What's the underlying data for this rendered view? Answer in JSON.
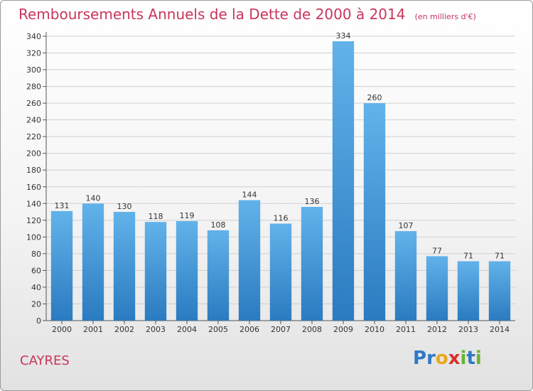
{
  "title": "Remboursements Annuels de la Dette de 2000 à 2014",
  "unit": "(en milliers d'€)",
  "commune": "CAYRES",
  "logo": {
    "parts": [
      "P",
      "r",
      "o",
      "x",
      "i",
      "t",
      "i"
    ],
    "colors": [
      "#2f78c4",
      "#2f78c4",
      "#e8a81b",
      "#d9302c",
      "#68b42f",
      "#2f78c4",
      "#68b42f"
    ]
  },
  "colors": {
    "title": "#c8365c",
    "bar_top": "#62b2ea",
    "bar_bottom": "#2a7bc0",
    "grid": "#cfcfcf"
  },
  "chart_data": {
    "type": "bar",
    "categories": [
      "2000",
      "2001",
      "2002",
      "2003",
      "2004",
      "2005",
      "2006",
      "2007",
      "2008",
      "2009",
      "2010",
      "2011",
      "2012",
      "2013",
      "2014"
    ],
    "values": [
      131,
      140,
      130,
      118,
      119,
      108,
      144,
      116,
      136,
      334,
      260,
      107,
      77,
      71,
      71
    ],
    "title": "Remboursements Annuels de la Dette de 2000 à 2014",
    "xlabel": "",
    "ylabel": "",
    "ylim": [
      0,
      340
    ],
    "yticks": [
      0,
      20,
      40,
      60,
      80,
      100,
      120,
      140,
      160,
      180,
      200,
      220,
      240,
      260,
      280,
      300,
      320,
      340
    ],
    "grid": true,
    "data_labels": true
  }
}
